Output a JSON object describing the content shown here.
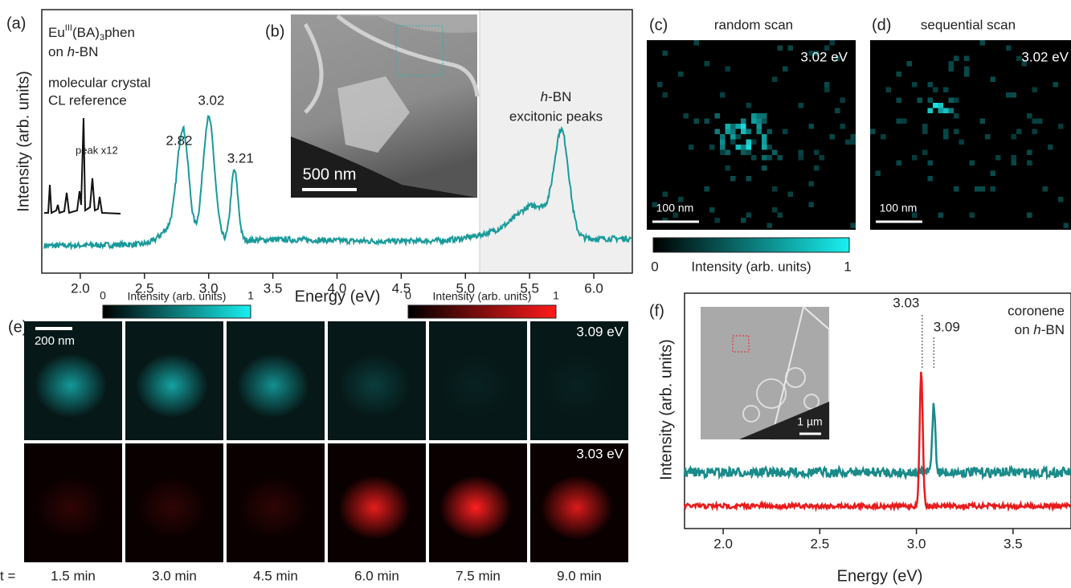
{
  "panel_a": {
    "label": "(a)",
    "sample": {
      "name": "Eu",
      "oxidation": "III",
      "ligand": "(BA)",
      "count": "3",
      "rest": "phen"
    },
    "substrate": {
      "prefix": "on ",
      "italic": "h",
      "suffix": "-BN"
    },
    "reference": [
      "molecular crystal",
      "CL reference"
    ],
    "scale_note": "peak x12",
    "peaks": [
      2.82,
      3.02,
      3.21
    ],
    "hbn": {
      "italic": "h",
      "suffix": "-BN",
      "caption": "excitonic peaks"
    },
    "y_label": "Intensity (arb. units)",
    "x_label": "Energy (eV)",
    "xlim": [
      1.7,
      6.3
    ],
    "xticks": [
      {
        "value": 2,
        "label": "2.0"
      },
      2.5,
      {
        "value": 3,
        "label": "3.0"
      },
      3.5,
      {
        "value": 4,
        "label": "4.0"
      },
      4.5,
      {
        "value": 5,
        "label": "5.0"
      },
      5.5,
      {
        "value": 6,
        "label": "6.0"
      }
    ]
  },
  "panel_b": {
    "label": "(b)",
    "scale_bar": "500 nm"
  },
  "panel_c": {
    "label": "(c)",
    "title": "random scan",
    "energy": "3.02 eV",
    "scale_bar": "100 nm"
  },
  "panel_d": {
    "label": "(d)",
    "title": "sequential scan",
    "energy": "3.02 eV",
    "scale_bar": "100 nm"
  },
  "colorbar": {
    "ticks": [
      0,
      1
    ],
    "label": "Intensity (arb. units)"
  },
  "panel_e": {
    "label": "(e)",
    "colorbars": [
      {
        "ticks": [
          0,
          1
        ],
        "label": "Intensity (arb. units)"
      },
      {
        "ticks": [
          0,
          1
        ],
        "label": "Intensity (arb. units)"
      }
    ],
    "scale_bar": "200 nm",
    "rows": [
      "3.09 eV",
      "3.03 eV"
    ],
    "time_prefix": "t =",
    "times": [
      "1.5 min",
      "3.0 min",
      "4.5 min",
      "6.0 min",
      "7.5 min",
      "9.0 min"
    ]
  },
  "panel_f": {
    "label": "(f)",
    "sample": "coronene",
    "substrate": {
      "prefix": "on ",
      "italic": "h",
      "suffix": "-BN"
    },
    "peaks": [
      3.03,
      3.09
    ],
    "scale_bar": "1 µm",
    "y_label": "Intensity (arb. units)",
    "x_label": "Energy (eV)",
    "xlim": [
      1.8,
      3.8
    ],
    "xticks": [
      {
        "value": 2,
        "label": "2.0"
      },
      2.5,
      {
        "value": 3,
        "label": "3.0"
      },
      3.5
    ]
  }
}
